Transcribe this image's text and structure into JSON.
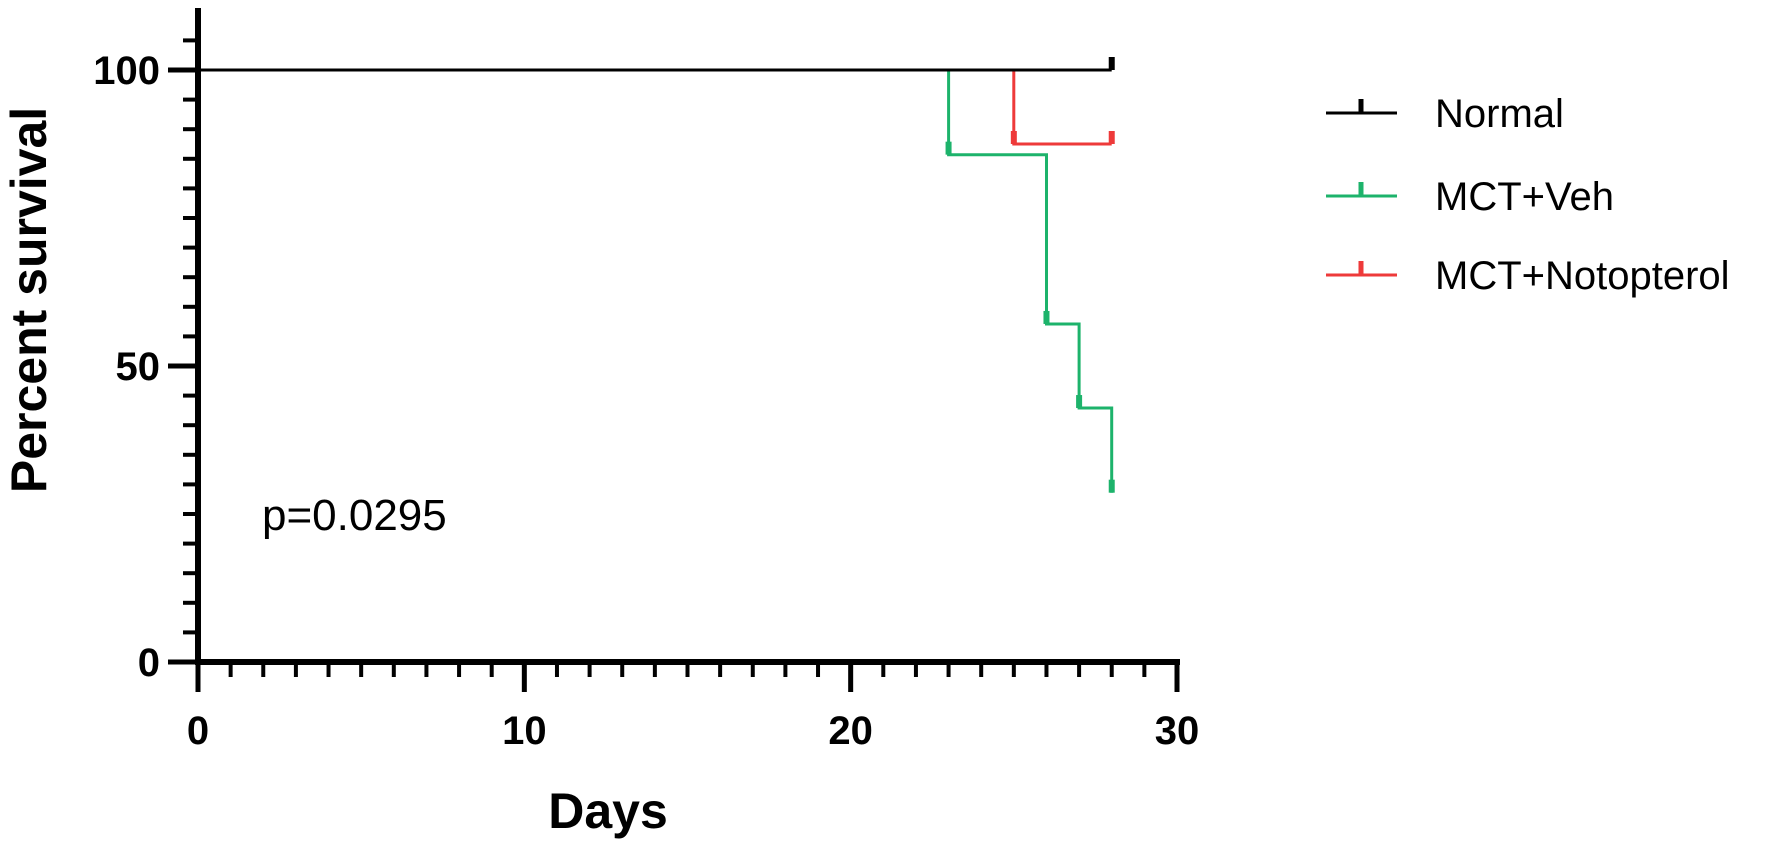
{
  "chart_data": {
    "type": "line",
    "subtype": "kaplan-meier survival",
    "title": "",
    "xlabel": "Days",
    "ylabel": "Percent survival",
    "xlim": [
      0,
      30
    ],
    "ylim": [
      0,
      100
    ],
    "x_ticks": [
      0,
      10,
      20,
      30
    ],
    "y_ticks": [
      0,
      50,
      100
    ],
    "x_minor_step": 1,
    "y_minor_step": 5,
    "grid": false,
    "legend_position": "right",
    "annotation": "p=0.0295",
    "series": [
      {
        "name": "Normal",
        "color": "#000000",
        "steps": [
          [
            0,
            100
          ],
          [
            28,
            100
          ]
        ],
        "censor_marks": [
          [
            28,
            100
          ]
        ]
      },
      {
        "name": "MCT+Veh",
        "color": "#1db36b",
        "steps": [
          [
            0,
            100
          ],
          [
            23,
            100
          ],
          [
            23,
            85.7
          ],
          [
            26,
            85.7
          ],
          [
            26,
            57.1
          ],
          [
            27,
            57.1
          ],
          [
            27,
            42.9
          ],
          [
            28,
            42.9
          ],
          [
            28,
            28.6
          ]
        ],
        "censor_marks": [
          [
            23,
            85.7
          ],
          [
            26,
            57.1
          ],
          [
            27,
            42.9
          ],
          [
            28,
            28.6
          ]
        ]
      },
      {
        "name": "MCT+Notopterol",
        "color": "#ee3a3a",
        "steps": [
          [
            0,
            100
          ],
          [
            25,
            100
          ],
          [
            25,
            87.5
          ],
          [
            28,
            87.5
          ]
        ],
        "censor_marks": [
          [
            25,
            87.5
          ],
          [
            28,
            87.5
          ]
        ]
      }
    ]
  }
}
